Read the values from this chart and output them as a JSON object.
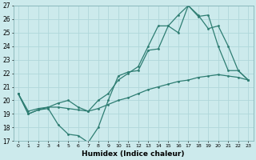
{
  "xlabel": "Humidex (Indice chaleur)",
  "bg_color": "#cceaec",
  "grid_color": "#b0d8db",
  "line_color": "#2e7d72",
  "xlim": [
    -0.5,
    23.5
  ],
  "ylim": [
    17,
    27
  ],
  "yticks": [
    17,
    18,
    19,
    20,
    21,
    22,
    23,
    24,
    25,
    26,
    27
  ],
  "xticks": [
    0,
    1,
    2,
    3,
    4,
    5,
    6,
    7,
    8,
    9,
    10,
    11,
    12,
    13,
    14,
    15,
    16,
    17,
    18,
    19,
    20,
    21,
    22,
    23
  ],
  "hours": [
    0,
    1,
    2,
    3,
    4,
    5,
    6,
    7,
    8,
    9,
    10,
    11,
    12,
    13,
    14,
    15,
    16,
    17,
    18,
    19,
    20,
    21,
    22,
    23
  ],
  "line_jagged": [
    20.5,
    19.0,
    19.3,
    19.4,
    18.2,
    17.5,
    17.4,
    16.9,
    18.0,
    20.0,
    21.8,
    22.1,
    22.2,
    23.7,
    23.8,
    25.5,
    25.0,
    27.0,
    26.2,
    26.3,
    24.0,
    22.2,
    22.2,
    21.5
  ],
  "line_smooth": [
    20.5,
    19.2,
    19.4,
    19.5,
    19.5,
    19.4,
    19.3,
    19.2,
    19.4,
    19.7,
    20.0,
    20.2,
    20.5,
    20.8,
    21.0,
    21.2,
    21.4,
    21.5,
    21.7,
    21.8,
    21.9,
    21.8,
    21.7,
    21.5
  ],
  "line_mid": [
    20.5,
    19.0,
    19.3,
    19.5,
    19.8,
    20.0,
    19.5,
    19.2,
    20.0,
    20.5,
    21.5,
    22.0,
    22.5,
    24.0,
    25.5,
    25.5,
    26.3,
    27.0,
    26.3,
    25.3,
    25.5,
    24.0,
    22.2,
    21.5
  ]
}
